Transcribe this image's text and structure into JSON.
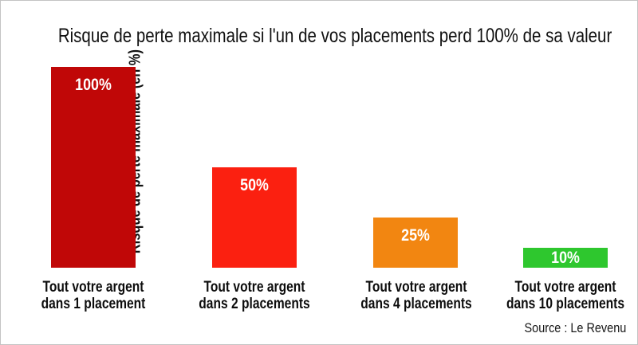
{
  "page": {
    "title": "Risque de perte maximale si l'un de vos placements perd 100% de sa valeur",
    "y_axis_label": "Risque de perte maximale (en %)",
    "source": "Source : Le Revenu"
  },
  "chart_data": {
    "type": "bar",
    "title": "Risque de perte maximale si l'un de vos placements perd 100% de sa valeur",
    "xlabel": "",
    "ylabel": "Risque de perte maximale (en %)",
    "ylim": [
      0,
      100
    ],
    "grid": false,
    "legend_position": "none",
    "source": "Source : Le Revenu",
    "categories": [
      "Tout votre argent dans 1 placement",
      "Tout votre argent dans 2 placements",
      "Tout votre argent dans 4 placements",
      "Tout votre argent dans 10 placements"
    ],
    "category_lines": [
      [
        "Tout votre argent",
        "dans 1 placement"
      ],
      [
        "Tout votre argent",
        "dans 2 placements"
      ],
      [
        "Tout votre argent",
        "dans 4 placements"
      ],
      [
        "Tout votre argent",
        "dans 10 placements"
      ]
    ],
    "values": [
      100,
      50,
      25,
      10
    ],
    "value_labels": [
      "100%",
      "50%",
      "25%",
      "10%"
    ],
    "bar_colors": [
      "#c00707",
      "#fb2010",
      "#f28611",
      "#2ec72e"
    ],
    "value_label_color": "#ffffff"
  }
}
